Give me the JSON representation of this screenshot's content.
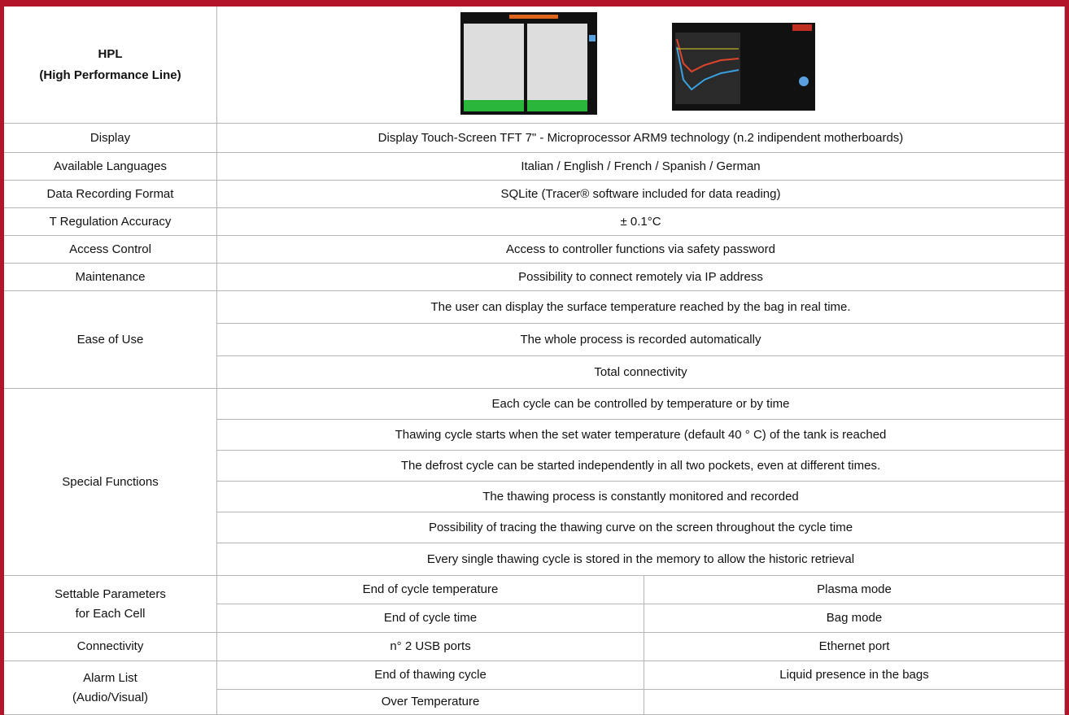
{
  "header": {
    "title": [
      "HPL",
      "(High Performance Line)"
    ]
  },
  "rows": [
    {
      "label": [
        "Display"
      ],
      "cells": [
        [
          "Display Touch-Screen TFT 7\" - Microprocessor ARM9 technology (n.2 indipendent motherboards)"
        ]
      ]
    },
    {
      "label": [
        "Available Languages"
      ],
      "cells": [
        [
          "Italian / English / French / Spanish / German"
        ]
      ]
    },
    {
      "label": [
        "Data Recording Format"
      ],
      "cells": [
        [
          "SQLite (Tracer® software included for data reading)"
        ]
      ]
    },
    {
      "label": [
        "T Regulation Accuracy"
      ],
      "cells": [
        [
          "± 0.1°C"
        ]
      ]
    },
    {
      "label": [
        "Access Control"
      ],
      "cells": [
        [
          "Access to controller functions via safety password"
        ]
      ]
    },
    {
      "label": [
        "Maintenance"
      ],
      "cells": [
        [
          "Possibility to connect remotely via IP address"
        ]
      ]
    },
    {
      "label": [
        "Ease of Use"
      ],
      "cells": [
        [
          "The user can display the surface temperature reached by the bag in real time."
        ],
        [
          "The whole process is recorded automatically"
        ],
        [
          "Total connectivity"
        ]
      ]
    },
    {
      "label": [
        "Special Functions"
      ],
      "cells": [
        [
          "Each cycle can be controlled by temperature or by time"
        ],
        [
          "Thawing cycle starts when the set water temperature (default 40 ° C) of the tank is reached"
        ],
        [
          "The defrost cycle can be started independently in all two pockets, even at different times."
        ],
        [
          "The thawing process is constantly monitored and recorded"
        ],
        [
          "Possibility of tracing the thawing curve on the screen throughout the cycle time"
        ],
        [
          "Every single thawing cycle is stored in the memory to allow the historic retrieval"
        ]
      ]
    },
    {
      "label": [
        "Settable Parameters",
        "for Each Cell"
      ],
      "cells": [
        [
          "End of cycle temperature",
          "Plasma mode"
        ],
        [
          "End of cycle time",
          "Bag mode"
        ]
      ]
    },
    {
      "label": [
        "Connectivity"
      ],
      "cells": [
        [
          "n° 2 USB ports",
          "Ethernet port"
        ]
      ]
    },
    {
      "label": [
        "Alarm List",
        "(Audio/Visual)"
      ],
      "cells": [
        [
          "End of thawing cycle",
          "Liquid presence in the bags"
        ],
        [
          "Over Temperature"
        ]
      ]
    }
  ]
}
